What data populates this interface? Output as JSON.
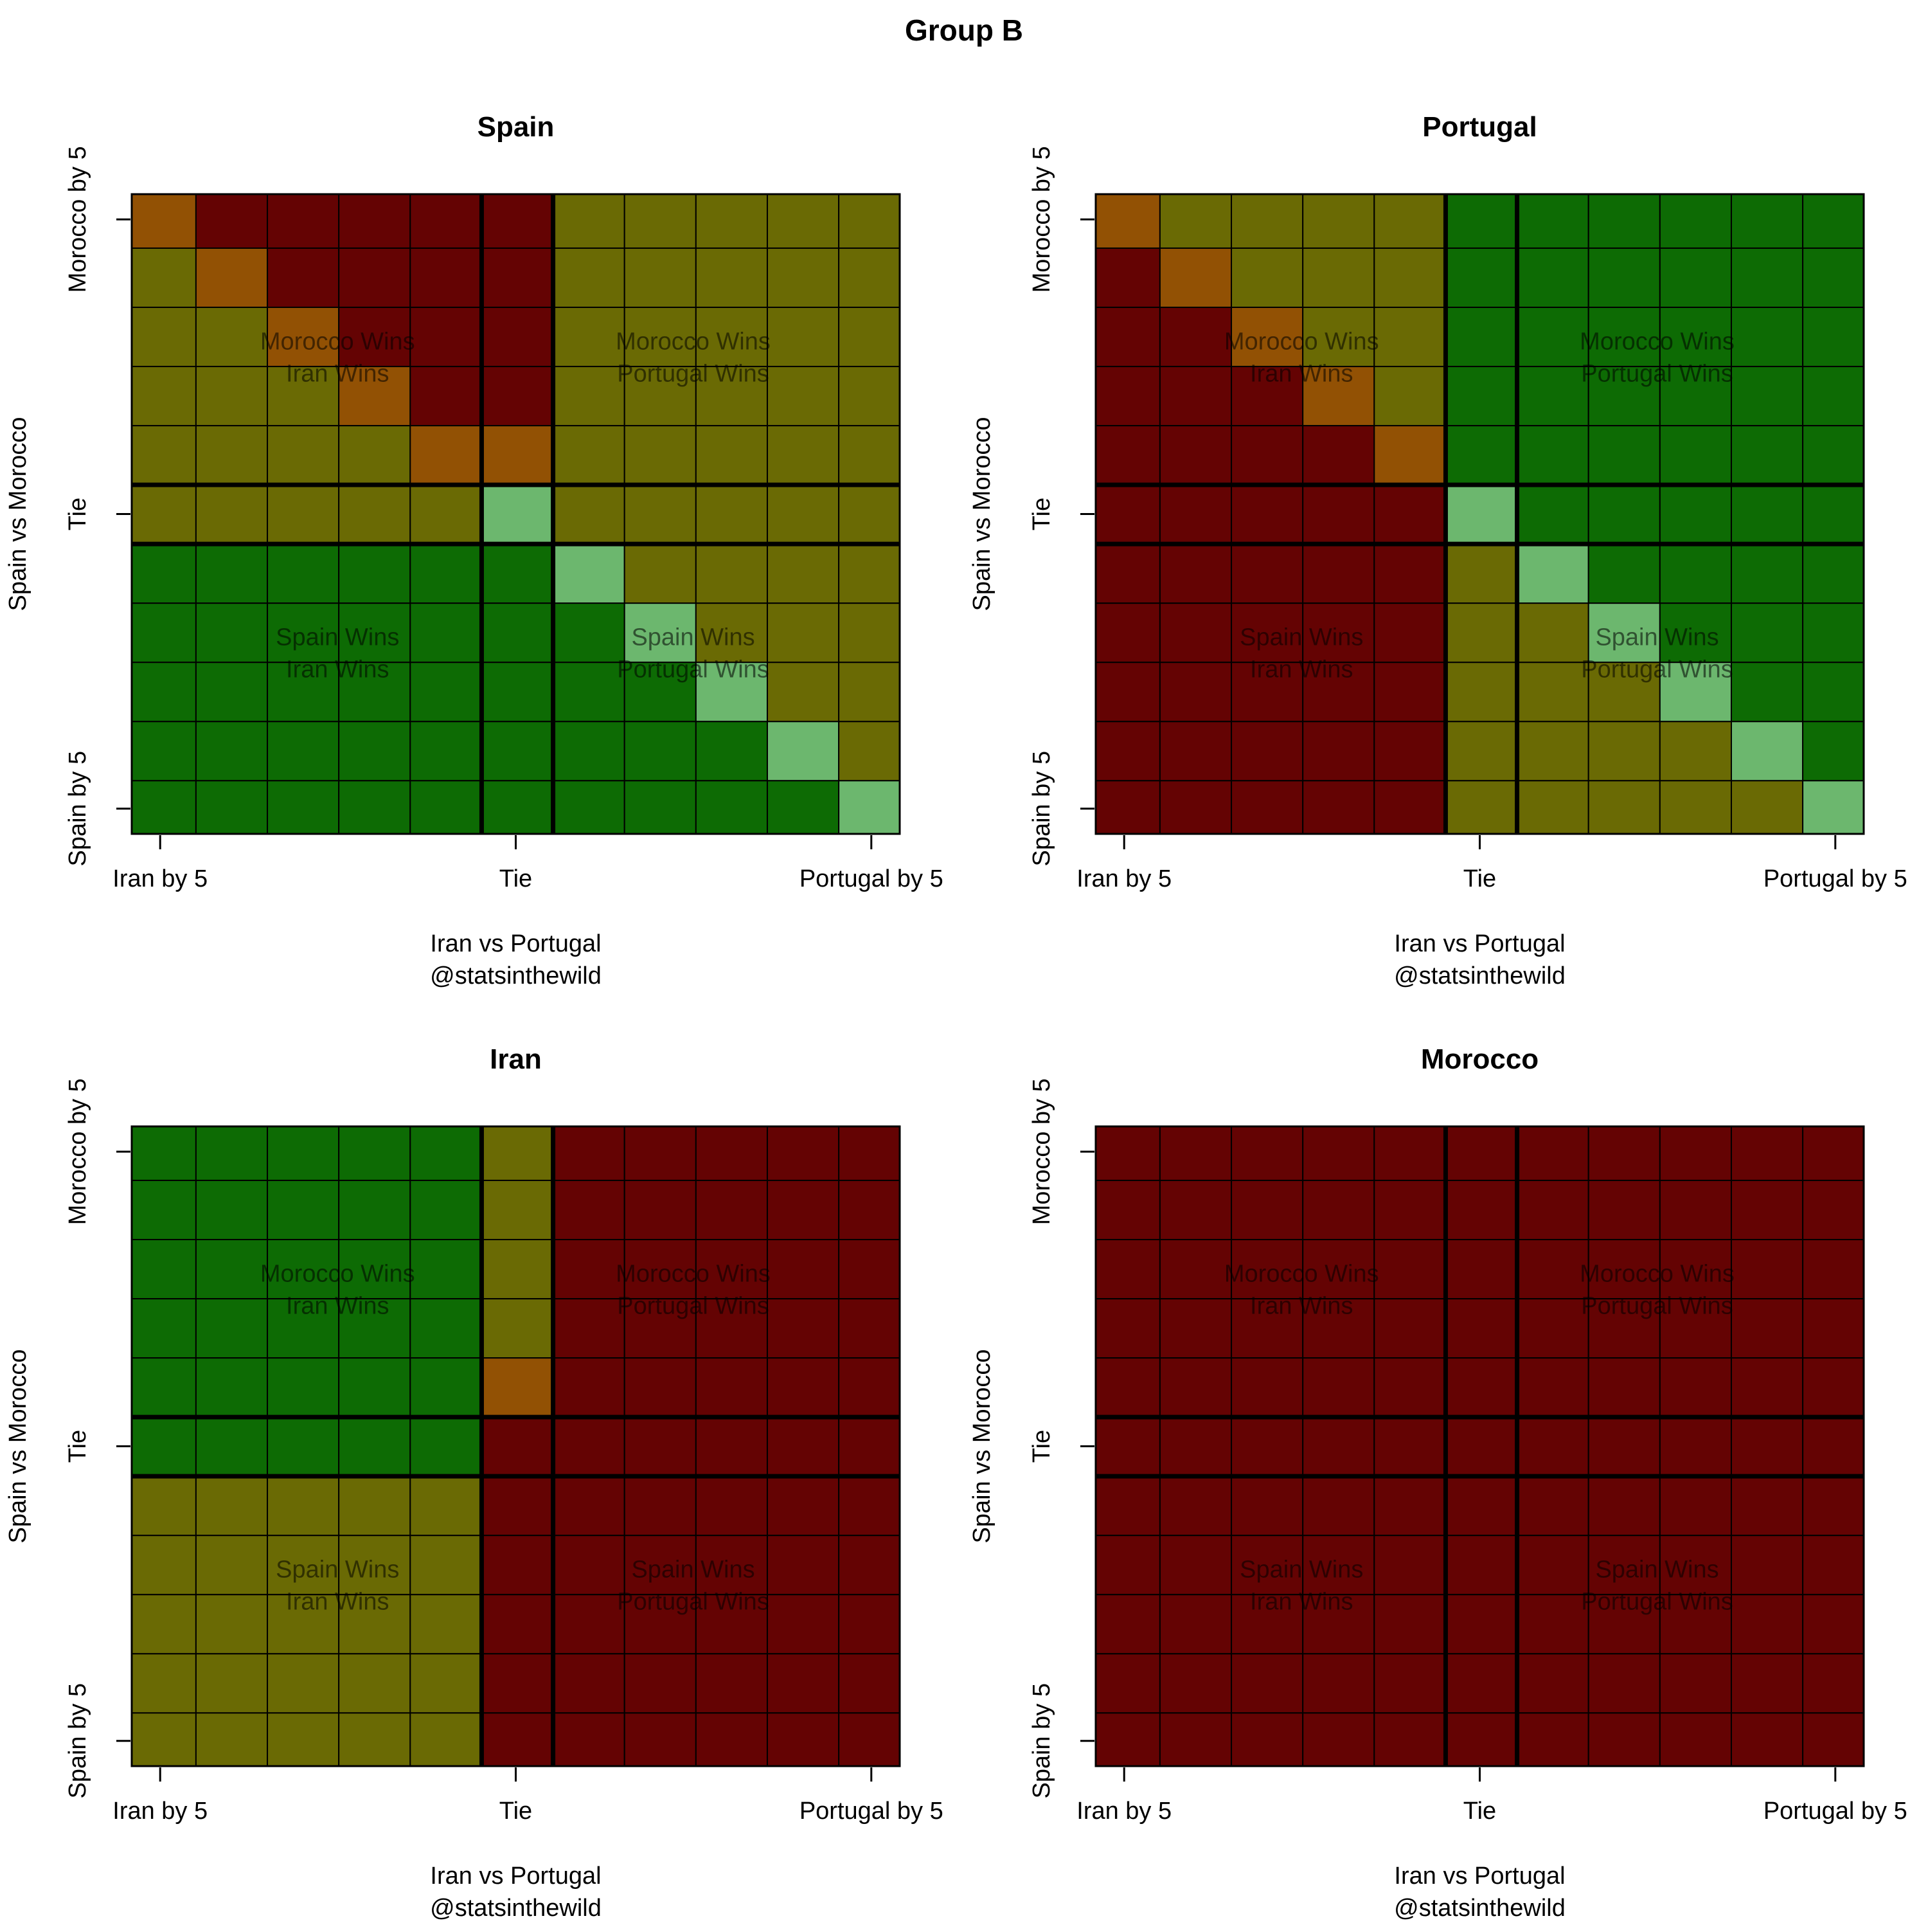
{
  "title": "Group B",
  "colors": {
    "through_advance": "#0d6b04",
    "through_tiebreak": "#6a6a04",
    "out_eliminated": "#640303",
    "draw_diag_tiebreak": "#925104",
    "draw_diag_advance": "#6cb76e"
  },
  "chart_data": [
    {
      "type": "heatmap",
      "title": "Spain",
      "xlabel": "Iran vs Portugal",
      "credit": "@statsinthewild",
      "ylabel": "Spain vs Morocco",
      "x_ticks": [
        "Iran by 5",
        "Tie",
        "Portugal by 5"
      ],
      "y_ticks": [
        "Morocco by 5",
        "Tie",
        "Spain by 5"
      ],
      "quadrant_labels": [
        [
          "Morocco Wins",
          "Iran Wins"
        ],
        [
          "Morocco Wins",
          "Portugal Wins"
        ],
        [
          "Spain Wins",
          "Iran Wins"
        ],
        [
          "Spain Wins",
          "Portugal Wins"
        ]
      ],
      "grid": [
        "DRRRRRTTTTT",
        "TDRRRRTTTTT",
        "TTDRRRTTTTT",
        "TTTDRRTTTTT",
        "TTTTDDTTTTT",
        "TTTTTLTTTTT",
        "GGGGGGLTTTT",
        "GGGGGGGLTTT",
        "GGGGGGGGLTT",
        "GGGGGGGGGLT",
        "GGGGGGGGGGL"
      ]
    },
    {
      "type": "heatmap",
      "title": "Portugal",
      "xlabel": "Iran vs Portugal",
      "credit": "@statsinthewild",
      "ylabel": "Spain vs Morocco",
      "x_ticks": [
        "Iran by 5",
        "Tie",
        "Portugal by 5"
      ],
      "y_ticks": [
        "Morocco by 5",
        "Tie",
        "Spain by 5"
      ],
      "quadrant_labels": [
        [
          "Morocco Wins",
          "Iran Wins"
        ],
        [
          "Morocco Wins",
          "Portugal Wins"
        ],
        [
          "Spain Wins",
          "Iran Wins"
        ],
        [
          "Spain Wins",
          "Portugal Wins"
        ]
      ],
      "grid": [
        "DTTTTGGGGGG",
        "RDTTTGGGGGG",
        "RRDTTGGGGGG",
        "RRRDTGGGGGG",
        "RRRRDGGGGGG",
        "RRRRRLGGGGG",
        "RRRRRTLGGGG",
        "RRRRRTTLGGG",
        "RRRRRTTTLGG",
        "RRRRRTTTTLG",
        "RRRRRTTTTTL"
      ]
    },
    {
      "type": "heatmap",
      "title": "Iran",
      "xlabel": "Iran vs Portugal",
      "credit": "@statsinthewild",
      "ylabel": "Spain vs Morocco",
      "x_ticks": [
        "Iran by 5",
        "Tie",
        "Portugal by 5"
      ],
      "y_ticks": [
        "Morocco by 5",
        "Tie",
        "Spain by 5"
      ],
      "quadrant_labels": [
        [
          "Morocco Wins",
          "Iran Wins"
        ],
        [
          "Morocco Wins",
          "Portugal Wins"
        ],
        [
          "Spain Wins",
          "Iran Wins"
        ],
        [
          "Spain Wins",
          "Portugal Wins"
        ]
      ],
      "grid": [
        "GGGGGTRRRRR",
        "GGGGGTRRRRR",
        "GGGGGTRRRRR",
        "GGGGGTRRRRR",
        "GGGGGDRRRRR",
        "GGGGGRRRRRR",
        "TTTTTRRRRRR",
        "TTTTTRRRRRR",
        "TTTTTRRRRRR",
        "TTTTTRRRRRR",
        "TTTTTRRRRRR"
      ]
    },
    {
      "type": "heatmap",
      "title": "Morocco",
      "xlabel": "Iran vs Portugal",
      "credit": "@statsinthewild",
      "ylabel": "Spain vs Morocco",
      "x_ticks": [
        "Iran by 5",
        "Tie",
        "Portugal by 5"
      ],
      "y_ticks": [
        "Morocco by 5",
        "Tie",
        "Spain by 5"
      ],
      "quadrant_labels": [
        [
          "Morocco Wins",
          "Iran Wins"
        ],
        [
          "Morocco Wins",
          "Portugal Wins"
        ],
        [
          "Spain Wins",
          "Iran Wins"
        ],
        [
          "Spain Wins",
          "Portugal Wins"
        ]
      ],
      "grid": [
        "RRRRRRRRRRR",
        "RRRRRRRRRRR",
        "RRRRRRRRRRR",
        "RRRRRRRRRRR",
        "RRRRRRRRRRR",
        "RRRRRRRRRRR",
        "RRRRRRRRRRR",
        "RRRRRRRRRRR",
        "RRRRRRRRRRR",
        "RRRRRRRRRRR",
        "RRRRRRRRRRR"
      ]
    }
  ]
}
